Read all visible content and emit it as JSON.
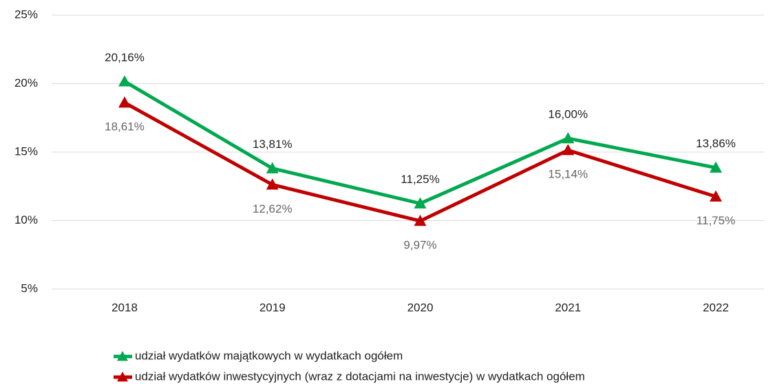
{
  "chart_data": {
    "type": "line",
    "categories": [
      "2018",
      "2019",
      "2020",
      "2021",
      "2022"
    ],
    "series": [
      {
        "name": "udział wydatków majątkowych w wydatkach ogółem",
        "color": "#00a84f",
        "values": [
          20.16,
          13.81,
          11.25,
          16.0,
          13.86
        ],
        "value_labels": [
          "20,16%",
          "13,81%",
          "11,25%",
          "16,00%",
          "13,86%"
        ]
      },
      {
        "name": "udział wydatków inwestycyjnych (wraz z dotacjami na inwestycje) w wydatkach ogółem",
        "color": "#c00000",
        "values": [
          18.61,
          12.62,
          9.97,
          15.14,
          11.75
        ],
        "value_labels": [
          "18,61%",
          "12,62%",
          "9,97%",
          "15,14%",
          "11,75%"
        ]
      }
    ],
    "ylim": [
      5,
      25
    ],
    "yticks": [
      {
        "value": 5,
        "label": "5%"
      },
      {
        "value": 10,
        "label": "10%"
      },
      {
        "value": 15,
        "label": "15%"
      },
      {
        "value": 20,
        "label": "20%"
      },
      {
        "value": 25,
        "label": "25%"
      }
    ],
    "grid": true
  }
}
